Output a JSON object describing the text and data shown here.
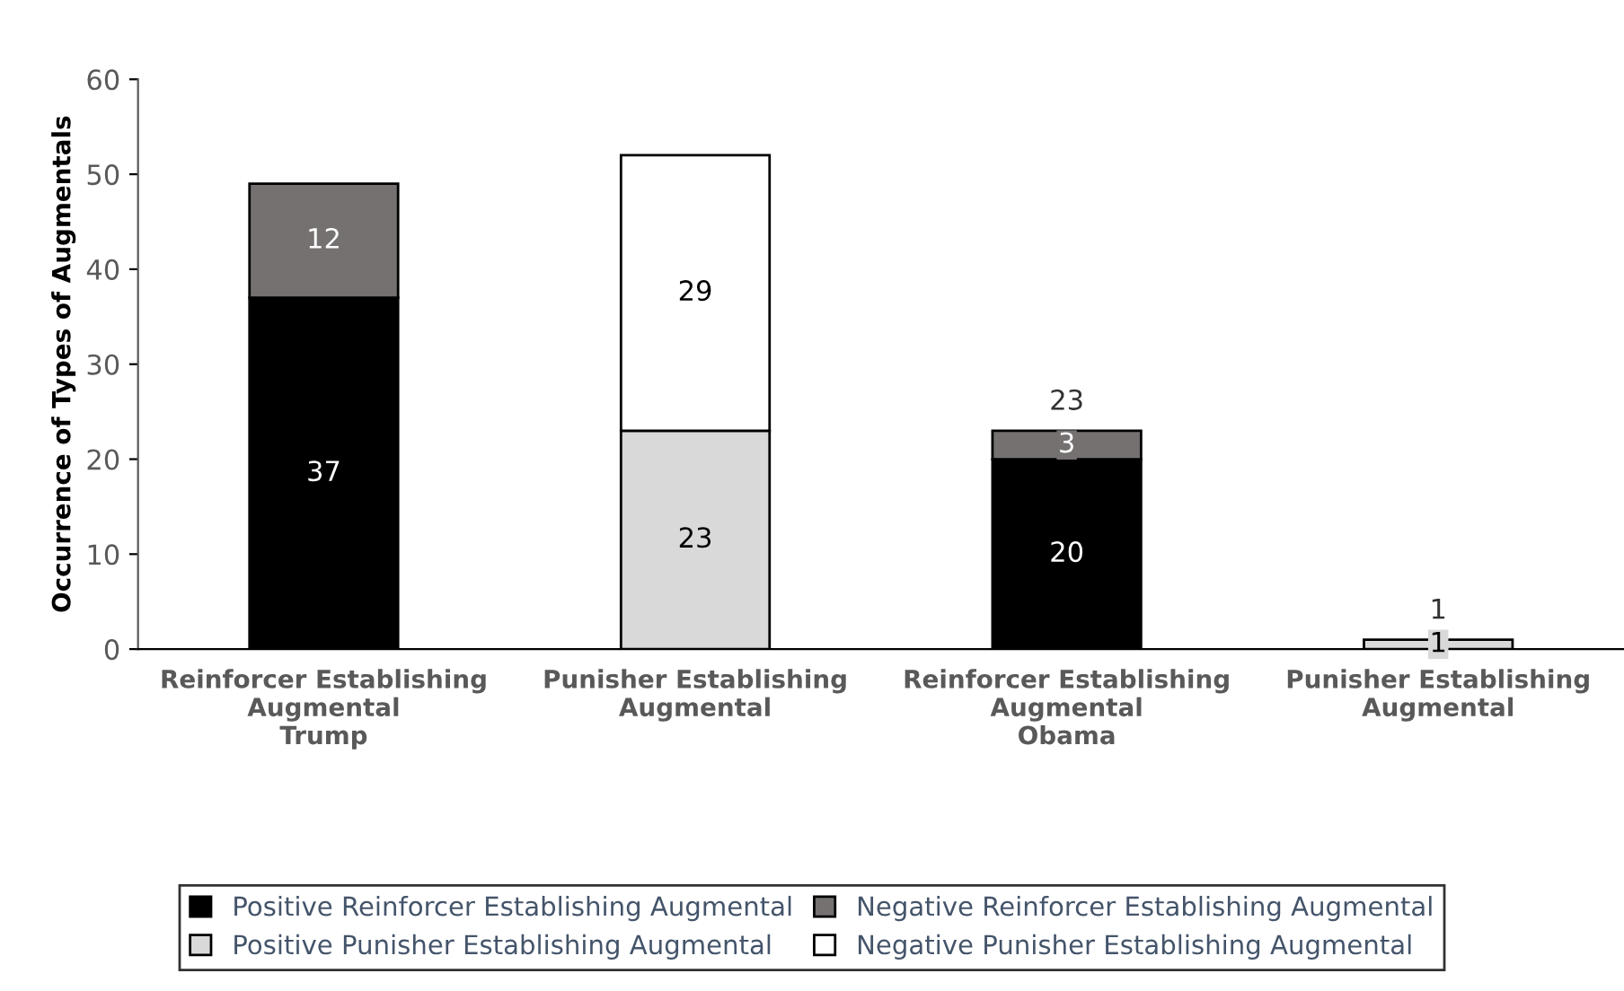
{
  "chart_data": {
    "type": "bar",
    "stacked": true,
    "ylabel": "Occurrence of Types of Augmentals",
    "categories": [
      "Reinforcer Establishing\nAugmental\nTrump",
      "Punisher Establishing\nAugmental",
      "Reinforcer Establishing\nAugmental\nObama",
      "Punisher Establishing\nAugmental"
    ],
    "series": [
      {
        "name": "Positive Reinforcer Establishing Augmental",
        "color": "#000000",
        "values": [
          37,
          null,
          20,
          null
        ]
      },
      {
        "name": "Negative Reinforcer Establishing Augmental",
        "color": "#757171",
        "values": [
          12,
          null,
          3,
          null
        ]
      },
      {
        "name": "Positive Punisher Establishing Augmental",
        "color": "#d9d9d9",
        "values": [
          null,
          23,
          null,
          1
        ]
      },
      {
        "name": "Negative Punisher Establishing Augmental",
        "color": "#ffffff",
        "values": [
          null,
          29,
          null,
          null
        ]
      }
    ],
    "data_labels": true,
    "totals": [
      null,
      null,
      "23",
      "1"
    ],
    "ylim": [
      0,
      60
    ],
    "yticks": [
      0,
      10,
      20,
      30,
      40,
      50,
      60
    ],
    "grid": false,
    "legend": "bottom"
  }
}
